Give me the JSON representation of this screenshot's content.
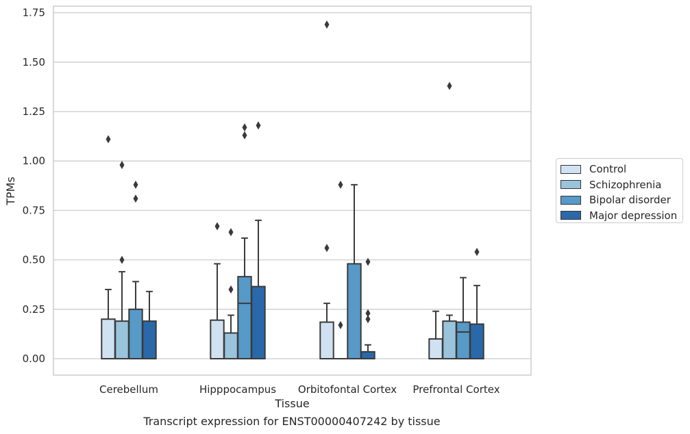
{
  "caption": "Transcript expression for ENST00000407242 by tissue",
  "chart_data": {
    "type": "box",
    "xlabel": "Tissue",
    "ylabel": "TPMs",
    "ylim": [
      -0.08,
      1.77
    ],
    "yticks": [
      0.0,
      0.25,
      0.5,
      0.75,
      1.0,
      1.25,
      1.5,
      1.75
    ],
    "ytick_labels": [
      "0.00",
      "0.25",
      "0.50",
      "0.75",
      "1.00",
      "1.25",
      "1.50",
      "1.75"
    ],
    "grid": true,
    "legend_position": "right",
    "categories": [
      "Cerebellum",
      "Hipppocampus",
      "Orbitofontal Cortex",
      "Prefrontal Cortex"
    ],
    "series": [
      {
        "name": "Control",
        "color": "#d0e1f2",
        "boxes": [
          {
            "q1": 0.0,
            "median": 0.0,
            "q3": 0.2,
            "whisker_low": 0.0,
            "whisker_high": 0.35,
            "outliers": [
              1.11
            ]
          },
          {
            "q1": 0.0,
            "median": 0.0,
            "q3": 0.195,
            "whisker_low": 0.0,
            "whisker_high": 0.48,
            "outliers": [
              0.67
            ]
          },
          {
            "q1": 0.0,
            "median": 0.0,
            "q3": 0.185,
            "whisker_low": 0.0,
            "whisker_high": 0.28,
            "outliers": [
              0.56,
              1.69
            ]
          },
          {
            "q1": 0.0,
            "median": 0.0,
            "q3": 0.1,
            "whisker_low": 0.0,
            "whisker_high": 0.24,
            "outliers": []
          }
        ]
      },
      {
        "name": "Schizophrenia",
        "color": "#9ac3dc",
        "boxes": [
          {
            "q1": 0.0,
            "median": 0.0,
            "q3": 0.19,
            "whisker_low": 0.0,
            "whisker_high": 0.44,
            "outliers": [
              0.5,
              0.98
            ]
          },
          {
            "q1": 0.0,
            "median": 0.0,
            "q3": 0.13,
            "whisker_low": 0.0,
            "whisker_high": 0.22,
            "outliers": [
              0.35,
              0.64
            ]
          },
          {
            "q1": 0.0,
            "median": 0.0,
            "q3": 0.0,
            "whisker_low": 0.0,
            "whisker_high": 0.0,
            "outliers": [
              0.17,
              0.88
            ]
          },
          {
            "q1": 0.0,
            "median": 0.0,
            "q3": 0.19,
            "whisker_low": 0.0,
            "whisker_high": 0.22,
            "outliers": [
              1.38
            ]
          }
        ]
      },
      {
        "name": "Bipolar disorder",
        "color": "#5799c7",
        "boxes": [
          {
            "q1": 0.0,
            "median": 0.0,
            "q3": 0.25,
            "whisker_low": 0.0,
            "whisker_high": 0.39,
            "outliers": [
              0.81,
              0.88
            ]
          },
          {
            "q1": 0.0,
            "median": 0.28,
            "q3": 0.415,
            "whisker_low": 0.0,
            "whisker_high": 0.61,
            "outliers": [
              1.13,
              1.17
            ]
          },
          {
            "q1": 0.0,
            "median": 0.0,
            "q3": 0.48,
            "whisker_low": 0.0,
            "whisker_high": 0.88,
            "outliers": []
          },
          {
            "q1": 0.0,
            "median": 0.135,
            "q3": 0.185,
            "whisker_low": 0.0,
            "whisker_high": 0.41,
            "outliers": []
          }
        ]
      },
      {
        "name": "Major depression",
        "color": "#2a69a9",
        "boxes": [
          {
            "q1": 0.0,
            "median": 0.0,
            "q3": 0.19,
            "whisker_low": 0.0,
            "whisker_high": 0.34,
            "outliers": []
          },
          {
            "q1": 0.0,
            "median": 0.0,
            "q3": 0.365,
            "whisker_low": 0.0,
            "whisker_high": 0.7,
            "outliers": [
              1.18
            ]
          },
          {
            "q1": 0.0,
            "median": 0.0,
            "q3": 0.035,
            "whisker_low": 0.0,
            "whisker_high": 0.07,
            "outliers": [
              0.2,
              0.23,
              0.49
            ]
          },
          {
            "q1": 0.0,
            "median": 0.0,
            "q3": 0.175,
            "whisker_low": 0.0,
            "whisker_high": 0.37,
            "outliers": [
              0.54
            ]
          }
        ]
      }
    ]
  }
}
